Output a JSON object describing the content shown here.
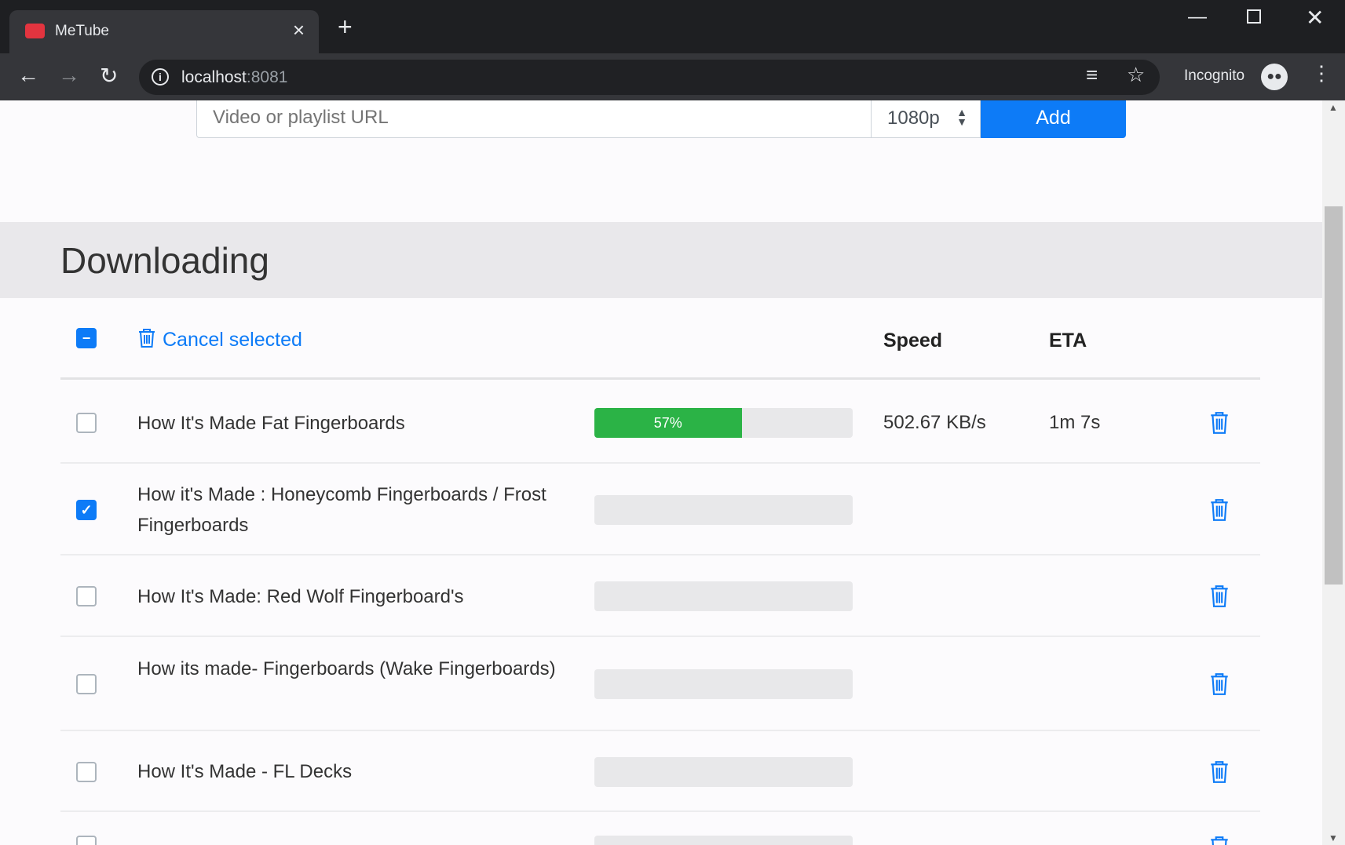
{
  "browser": {
    "tab_title": "MeTube",
    "url_host": "localhost",
    "url_port": ":8081",
    "profile": "Incognito"
  },
  "form": {
    "url_placeholder": "Video or playlist URL",
    "quality": "1080p",
    "add_label": "Add"
  },
  "section": {
    "title": "Downloading",
    "cancel_selected": "Cancel selected",
    "col_speed": "Speed",
    "col_eta": "ETA"
  },
  "accent": "#0d7bf7",
  "progress_color": "#2bb346",
  "downloads": [
    {
      "title": "How It's Made Fat Fingerboards",
      "checked": false,
      "progress": 57,
      "progress_label": "57%",
      "speed": "502.67 KB/s",
      "eta": "1m 7s"
    },
    {
      "title": "How it's Made : Honeycomb Fingerboards / Frost Fingerboards",
      "checked": true,
      "progress": 0
    },
    {
      "title": "How It's Made: Red Wolf Fingerboard's",
      "checked": false,
      "progress": 0
    },
    {
      "title": "How its made- Fingerboards (Wake Fingerboards)",
      "checked": false,
      "progress": 0
    },
    {
      "title": "How It's Made - FL Decks",
      "checked": false,
      "progress": 0
    }
  ]
}
